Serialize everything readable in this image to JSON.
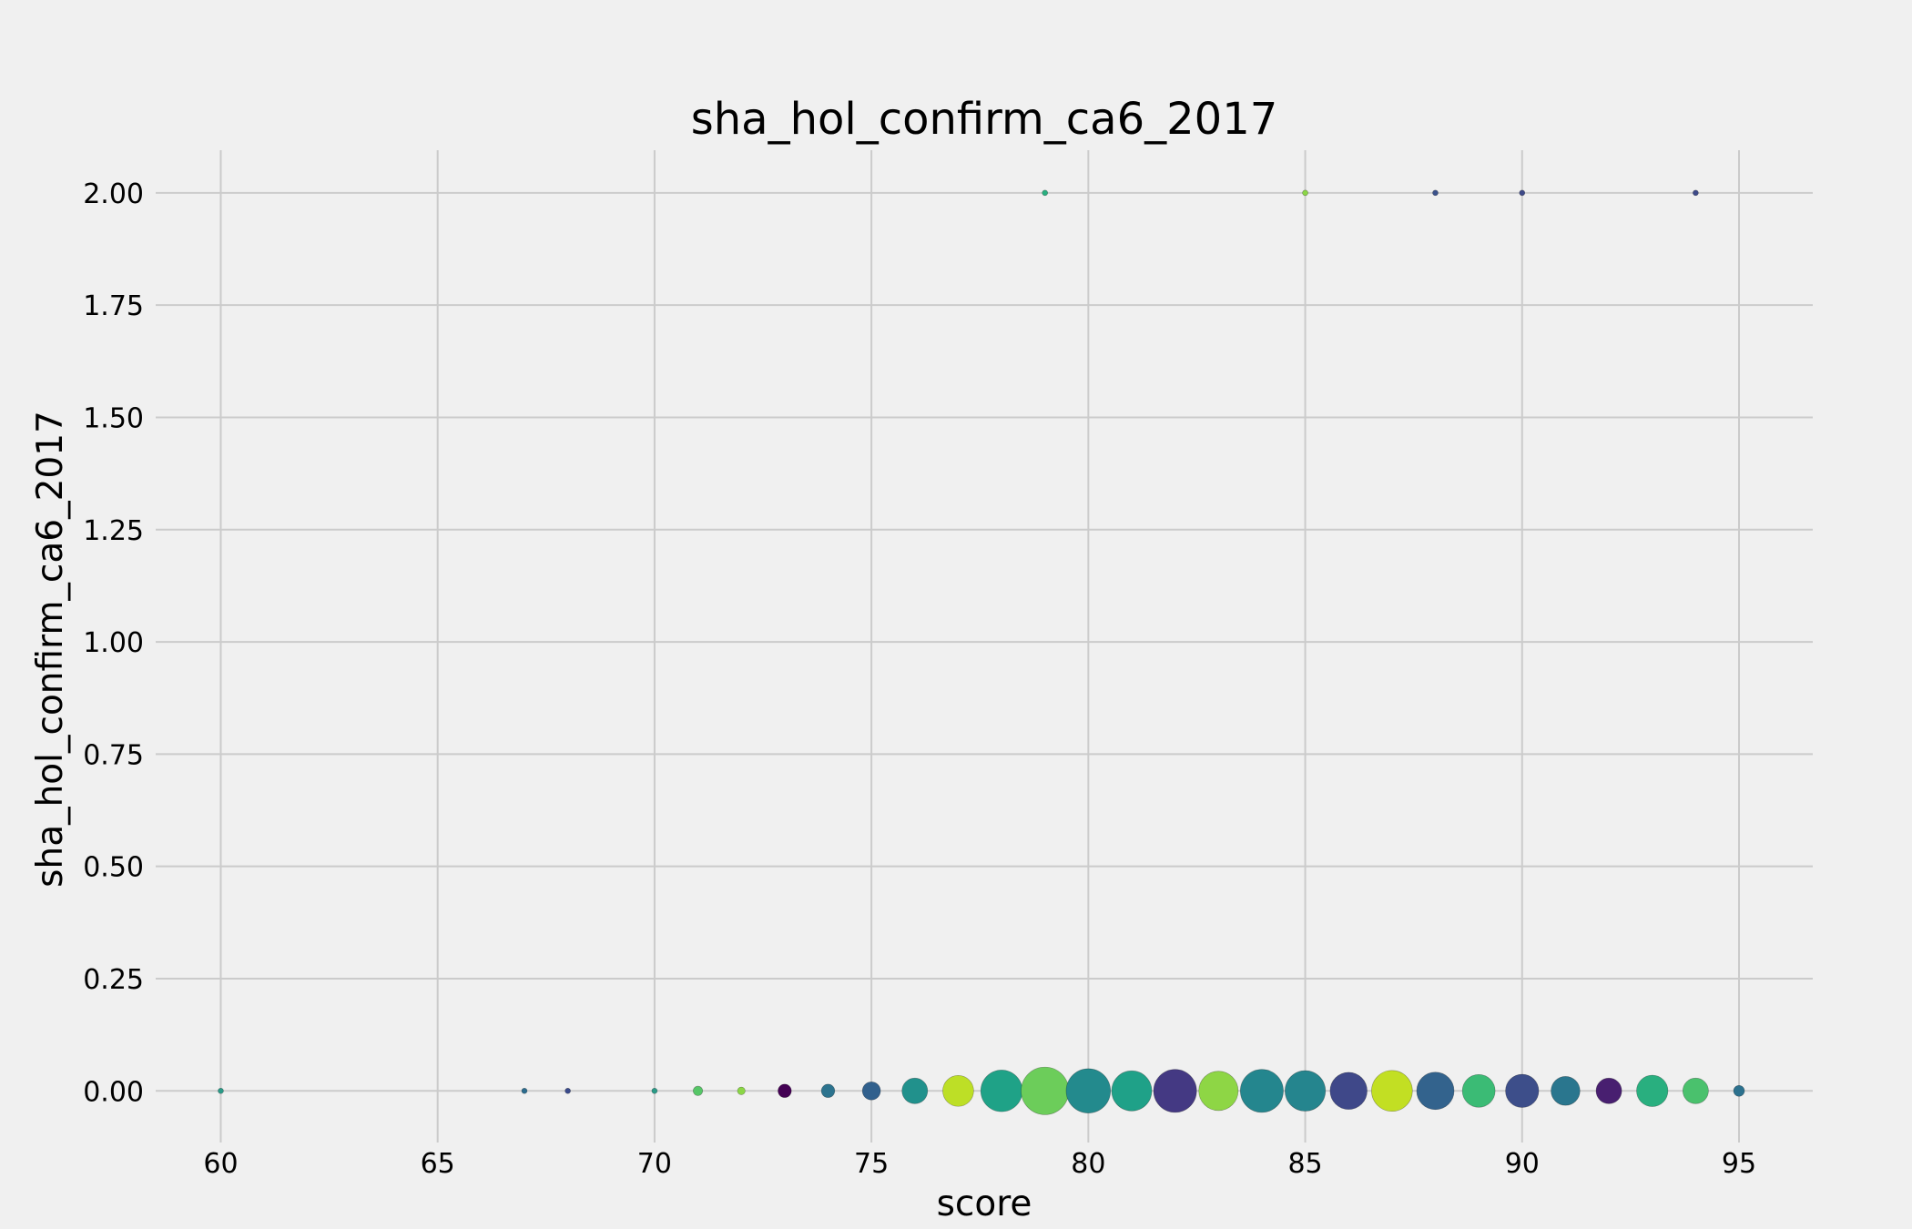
{
  "chart_data": {
    "type": "scatter",
    "title": "sha_hol_confirm_ca6_2017",
    "xlabel": "score",
    "ylabel": "sha_hol_confirm_ca6_2017",
    "xlim": [
      58.5,
      96.7
    ],
    "ylim": [
      -0.115,
      2.095
    ],
    "x_ticks": [
      60,
      65,
      70,
      75,
      80,
      85,
      90,
      95
    ],
    "x_tick_labels": [
      "60",
      "65",
      "70",
      "75",
      "80",
      "85",
      "90",
      "95"
    ],
    "y_ticks": [
      0,
      0.25,
      0.5,
      0.75,
      1.0,
      1.25,
      1.5,
      1.75,
      2.0
    ],
    "y_tick_labels": [
      "0.00",
      "0.25",
      "0.50",
      "0.75",
      "1.00",
      "1.25",
      "1.50",
      "1.75",
      "2.00"
    ],
    "grid": true,
    "legend": "none",
    "background": "#f0f0f0",
    "points": [
      {
        "x": 60,
        "y": 0,
        "size": 1,
        "color": "#2a9a87"
      },
      {
        "x": 67,
        "y": 0,
        "size": 1,
        "color": "#2c6c8e"
      },
      {
        "x": 68,
        "y": 0,
        "size": 1,
        "color": "#3a4a8b"
      },
      {
        "x": 70,
        "y": 0,
        "size": 1,
        "color": "#2a9a87"
      },
      {
        "x": 71,
        "y": 0,
        "size": 3,
        "color": "#56c667"
      },
      {
        "x": 72,
        "y": 0,
        "size": 2,
        "color": "#8bd646"
      },
      {
        "x": 73,
        "y": 0,
        "size": 6,
        "color": "#440154"
      },
      {
        "x": 74,
        "y": 0,
        "size": 6,
        "color": "#2c738e"
      },
      {
        "x": 75,
        "y": 0,
        "size": 11,
        "color": "#31608d"
      },
      {
        "x": 76,
        "y": 0,
        "size": 22,
        "color": "#21918c"
      },
      {
        "x": 77,
        "y": 0,
        "size": 32,
        "color": "#bddf26"
      },
      {
        "x": 78,
        "y": 0,
        "size": 58,
        "color": "#1fa287"
      },
      {
        "x": 79,
        "y": 0,
        "size": 76,
        "color": "#6ccd5a"
      },
      {
        "x": 80,
        "y": 0,
        "size": 66,
        "color": "#238a8d"
      },
      {
        "x": 81,
        "y": 0,
        "size": 54,
        "color": "#1fa188"
      },
      {
        "x": 82,
        "y": 0,
        "size": 62,
        "color": "#443983"
      },
      {
        "x": 83,
        "y": 0,
        "size": 52,
        "color": "#8ed645"
      },
      {
        "x": 84,
        "y": 0,
        "size": 62,
        "color": "#24868e"
      },
      {
        "x": 85,
        "y": 0,
        "size": 55,
        "color": "#25858e"
      },
      {
        "x": 86,
        "y": 0,
        "size": 46,
        "color": "#3f4889"
      },
      {
        "x": 87,
        "y": 0,
        "size": 56,
        "color": "#c2df23"
      },
      {
        "x": 88,
        "y": 0,
        "size": 47,
        "color": "#33638d"
      },
      {
        "x": 89,
        "y": 0,
        "size": 36,
        "color": "#3bbb75"
      },
      {
        "x": 90,
        "y": 0,
        "size": 37,
        "color": "#3d4e8a"
      },
      {
        "x": 91,
        "y": 0,
        "size": 28,
        "color": "#2a768e"
      },
      {
        "x": 92,
        "y": 0,
        "size": 22,
        "color": "#481f70"
      },
      {
        "x": 93,
        "y": 0,
        "size": 33,
        "color": "#29af7f"
      },
      {
        "x": 94,
        "y": 0,
        "size": 22,
        "color": "#4ac16d"
      },
      {
        "x": 95,
        "y": 0,
        "size": 4,
        "color": "#2c718e"
      },
      {
        "x": 79,
        "y": 2,
        "size": 1,
        "color": "#29af7f"
      },
      {
        "x": 85,
        "y": 2,
        "size": 1,
        "color": "#8bd646"
      },
      {
        "x": 88,
        "y": 2,
        "size": 1,
        "color": "#3b528b"
      },
      {
        "x": 90,
        "y": 2,
        "size": 1,
        "color": "#3e4a89"
      },
      {
        "x": 94,
        "y": 2,
        "size": 1,
        "color": "#3e4a89"
      }
    ]
  }
}
